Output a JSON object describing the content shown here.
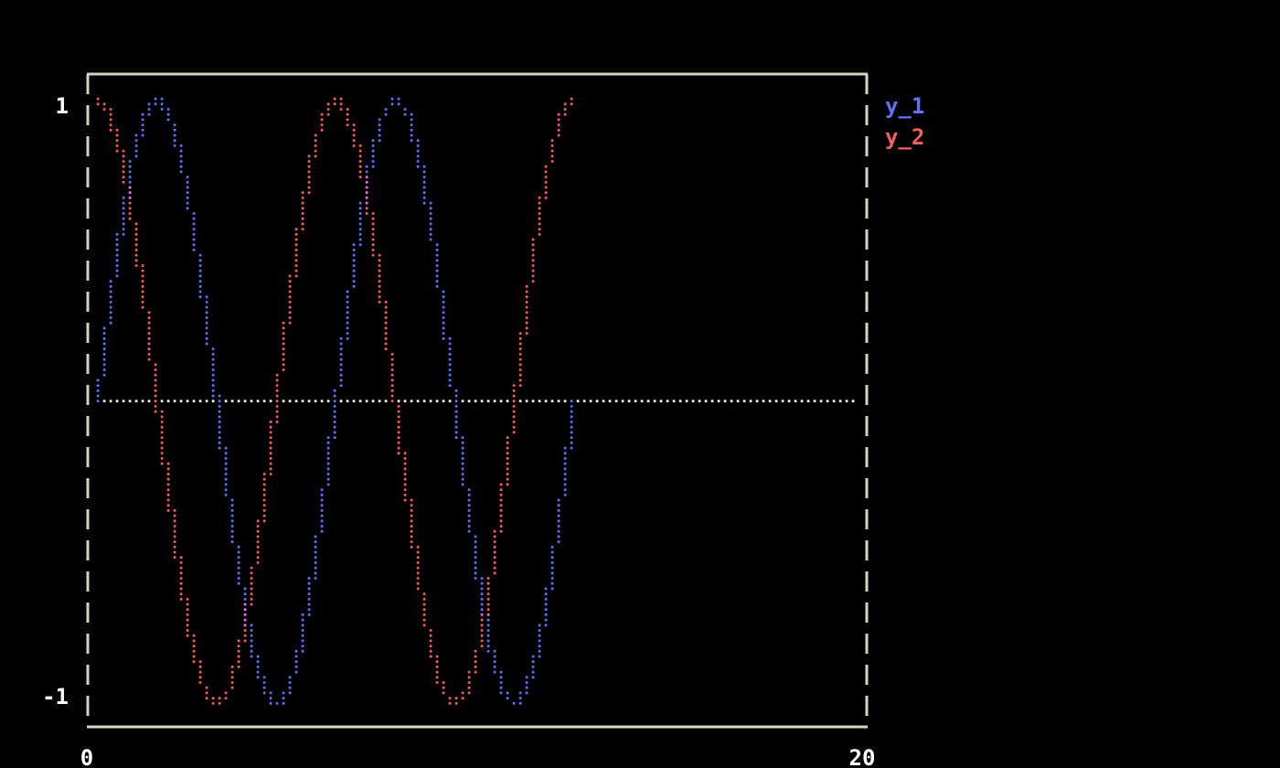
{
  "chart_data": {
    "type": "scatter",
    "title": "",
    "xlabel": "",
    "ylabel": "",
    "xlim": [
      0,
      20
    ],
    "ylim": [
      -1,
      1
    ],
    "xticks": [
      "0",
      "20"
    ],
    "yticks": [
      "1",
      "-1"
    ],
    "grid": false,
    "legend_placement": "right-top",
    "hline": {
      "y": 0,
      "x_from": 0,
      "x_to": 20,
      "color": "#fffff0"
    },
    "x": [
      0,
      0.31,
      0.63,
      0.94,
      1.26,
      1.57,
      1.88,
      2.2,
      2.51,
      2.83,
      3.14,
      3.46,
      3.77,
      4.08,
      4.4,
      4.71,
      5.03,
      5.34,
      5.65,
      5.97,
      6.28,
      6.6,
      6.91,
      7.23,
      7.54,
      7.85,
      8.17,
      8.48,
      8.8,
      9.11,
      9.42,
      9.74,
      10.05,
      10.37,
      10.68,
      11.0,
      11.31,
      11.62,
      11.94,
      12.25,
      12.57
    ],
    "series": [
      {
        "name": "y_1",
        "color": "#6272f4",
        "values": [
          0,
          0.309,
          0.588,
          0.809,
          0.951,
          1,
          0.951,
          0.809,
          0.588,
          0.309,
          0,
          -0.309,
          -0.588,
          -0.809,
          -0.951,
          -1,
          -0.951,
          -0.809,
          -0.588,
          -0.309,
          0,
          0.309,
          0.588,
          0.809,
          0.951,
          1,
          0.951,
          0.809,
          0.588,
          0.309,
          0,
          -0.309,
          -0.588,
          -0.809,
          -0.951,
          -1,
          -0.951,
          -0.809,
          -0.588,
          -0.309,
          0
        ]
      },
      {
        "name": "y_2",
        "color": "#f26060",
        "values": [
          1,
          0.951,
          0.809,
          0.588,
          0.309,
          0,
          -0.309,
          -0.588,
          -0.809,
          -0.951,
          -1,
          -0.951,
          -0.809,
          -0.588,
          -0.309,
          0,
          0.309,
          0.588,
          0.809,
          0.951,
          1,
          0.951,
          0.809,
          0.588,
          0.309,
          0,
          -0.309,
          -0.588,
          -0.809,
          -0.951,
          -1,
          -0.951,
          -0.809,
          -0.588,
          -0.309,
          0,
          0.309,
          0.588,
          0.809,
          0.951,
          1
        ]
      }
    ],
    "overlap_color": "#f070f0",
    "frame_color": "#d8d2c4"
  }
}
